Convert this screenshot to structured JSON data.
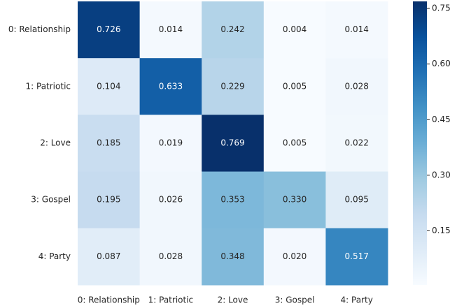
{
  "chart_data": {
    "type": "heatmap",
    "x_categories": [
      "0: Relationship",
      "1: Patriotic",
      "2: Love",
      "3: Gospel",
      "4: Party"
    ],
    "y_categories": [
      "0: Relationship",
      "1: Patriotic",
      "2: Love",
      "3: Gospel",
      "4: Party"
    ],
    "values": [
      [
        0.726,
        0.014,
        0.242,
        0.004,
        0.014
      ],
      [
        0.104,
        0.633,
        0.229,
        0.005,
        0.028
      ],
      [
        0.185,
        0.019,
        0.769,
        0.005,
        0.022
      ],
      [
        0.195,
        0.026,
        0.353,
        0.33,
        0.095
      ],
      [
        0.087,
        0.028,
        0.348,
        0.02,
        0.517
      ]
    ],
    "value_labels": [
      [
        "0.726",
        "0.014",
        "0.242",
        "0.004",
        "0.014"
      ],
      [
        "0.104",
        "0.633",
        "0.229",
        "0.005",
        "0.028"
      ],
      [
        "0.185",
        "0.019",
        "0.769",
        "0.005",
        "0.022"
      ],
      [
        "0.195",
        "0.026",
        "0.353",
        "0.330",
        "0.095"
      ],
      [
        "0.087",
        "0.028",
        "0.348",
        "0.020",
        "0.517"
      ]
    ],
    "colormap": [
      "#f7fbff",
      "#deebf7",
      "#c6dbef",
      "#9ecae1",
      "#6baed6",
      "#4292c6",
      "#2171b5",
      "#08519c",
      "#08306b"
    ],
    "clim": [
      0.004,
      0.769
    ],
    "cticks": [
      {
        "value": 0.15,
        "label": "0.15"
      },
      {
        "value": 0.3,
        "label": "0.30"
      },
      {
        "value": 0.45,
        "label": "0.45"
      },
      {
        "value": 0.6,
        "label": "0.60"
      },
      {
        "value": 0.75,
        "label": "0.75"
      }
    ]
  }
}
